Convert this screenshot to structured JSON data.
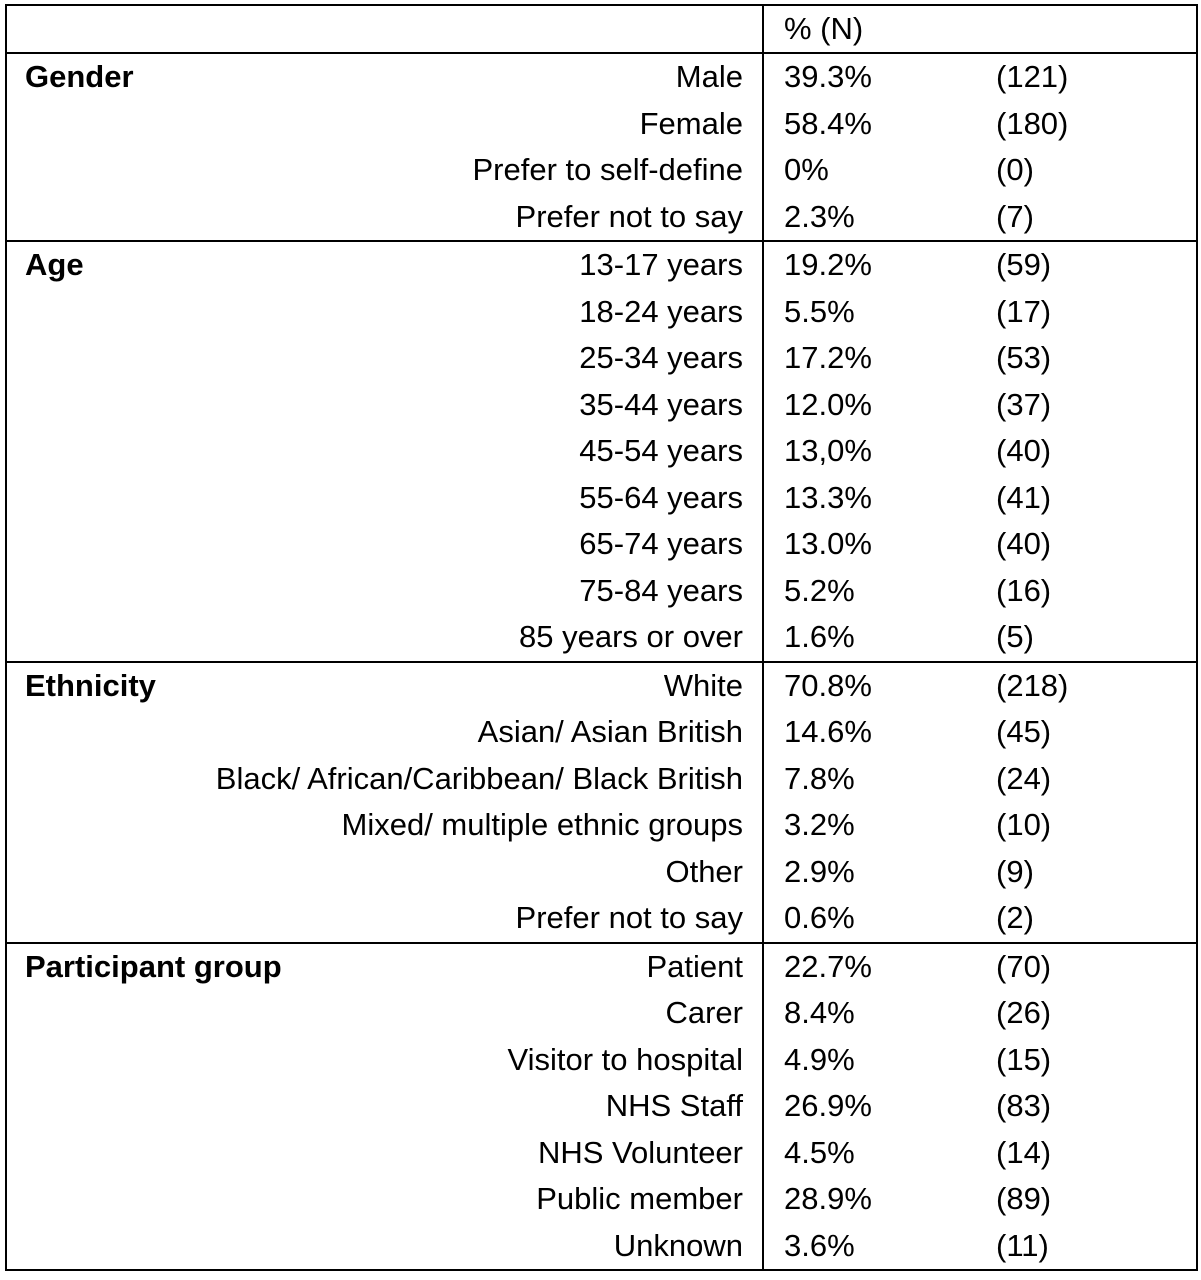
{
  "header": {
    "category": "",
    "pct_n": "% (N)",
    "n": ""
  },
  "groups": [
    {
      "title": "Gender",
      "rows": [
        {
          "label": "Male",
          "pct": "39.3%",
          "n": "(121)"
        },
        {
          "label": "Female",
          "pct": "58.4%",
          "n": "(180)"
        },
        {
          "label": "Prefer to self-define",
          "pct": "0%",
          "n": "(0)"
        },
        {
          "label": "Prefer not to say",
          "pct": "2.3%",
          "n": "(7)"
        }
      ]
    },
    {
      "title": "Age",
      "rows": [
        {
          "label": "13-17 years",
          "pct": "19.2%",
          "n": "(59)"
        },
        {
          "label": "18-24 years",
          "pct": "5.5%",
          "n": "(17)"
        },
        {
          "label": "25-34 years",
          "pct": "17.2%",
          "n": "(53)"
        },
        {
          "label": "35-44 years",
          "pct": "12.0%",
          "n": "(37)"
        },
        {
          "label": "45-54 years",
          "pct": "13,0%",
          "n": "(40)"
        },
        {
          "label": "55-64 years",
          "pct": "13.3%",
          "n": "(41)"
        },
        {
          "label": "65-74 years",
          "pct": "13.0%",
          "n": "(40)"
        },
        {
          "label": "75-84 years",
          "pct": "5.2%",
          "n": "(16)"
        },
        {
          "label": "85 years or over",
          "pct": "1.6%",
          "n": "(5)"
        }
      ]
    },
    {
      "title": "Ethnicity",
      "rows": [
        {
          "label": "White",
          "pct": "70.8%",
          "n": "(218)"
        },
        {
          "label": "Asian/ Asian British",
          "pct": "14.6%",
          "n": "(45)"
        },
        {
          "label": "Black/ African/Caribbean/ Black British",
          "pct": "7.8%",
          "n": "(24)"
        },
        {
          "label": "Mixed/ multiple ethnic groups",
          "pct": "3.2%",
          "n": "(10)"
        },
        {
          "label": "Other",
          "pct": "2.9%",
          "n": "(9)"
        },
        {
          "label": "Prefer not to say",
          "pct": "0.6%",
          "n": "(2)"
        }
      ]
    },
    {
      "title": "Participant group",
      "rows": [
        {
          "label": "Patient",
          "pct": "22.7%",
          "n": "(70)"
        },
        {
          "label": "Carer",
          "pct": "8.4%",
          "n": "(26)"
        },
        {
          "label": "Visitor to hospital",
          "pct": "4.9%",
          "n": "(15)"
        },
        {
          "label": "NHS Staff",
          "pct": "26.9%",
          "n": "(83)"
        },
        {
          "label": "NHS Volunteer",
          "pct": "4.5%",
          "n": "(14)"
        },
        {
          "label": "Public member",
          "pct": "28.9%",
          "n": "(89)"
        },
        {
          "label": "Unknown",
          "pct": "3.6%",
          "n": "(11)"
        }
      ]
    }
  ]
}
